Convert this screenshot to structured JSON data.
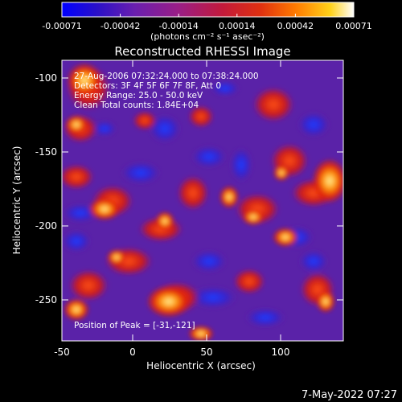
{
  "colorbar": {
    "tick_labels": [
      "-0.00071",
      "-0.00042",
      "-0.00014",
      "0.00014",
      "0.00042",
      "0.00071"
    ],
    "units_label": "(photons cm⁻² s⁻¹ asec⁻²)",
    "stops": [
      "#0000ff",
      "#2a10c8",
      "#6a1fae",
      "#9a1e86",
      "#c21a3b",
      "#e03010",
      "#ff7a00",
      "#ffd21a",
      "#ffffff"
    ]
  },
  "image": {
    "title": "Reconstructed RHESSI Image",
    "annotations": {
      "time": "27-Aug-2006 07:32:24.000 to 07:38:24.000",
      "detectors": "Detectors: 3F 4F 5F 6F 7F 8F, Att 0",
      "energy": "Energy Range: 25.0 - 50.0 keV",
      "counts": "Clean     Total counts: 1.84E+04"
    },
    "peak_label": "Position of Peak = [-31,-121]",
    "x_axis": {
      "label": "Heliocentric X (arcsec)",
      "range": [
        -50,
        140
      ],
      "ticks": [
        "-50",
        "0",
        "50",
        "100"
      ]
    },
    "y_axis": {
      "label": "Heliocentric Y (arcsec)",
      "range": [
        -280,
        -90
      ],
      "ticks": [
        "-100",
        "-150",
        "-200",
        "-250"
      ]
    }
  },
  "timestamp": "7-May-2022 07:27"
}
